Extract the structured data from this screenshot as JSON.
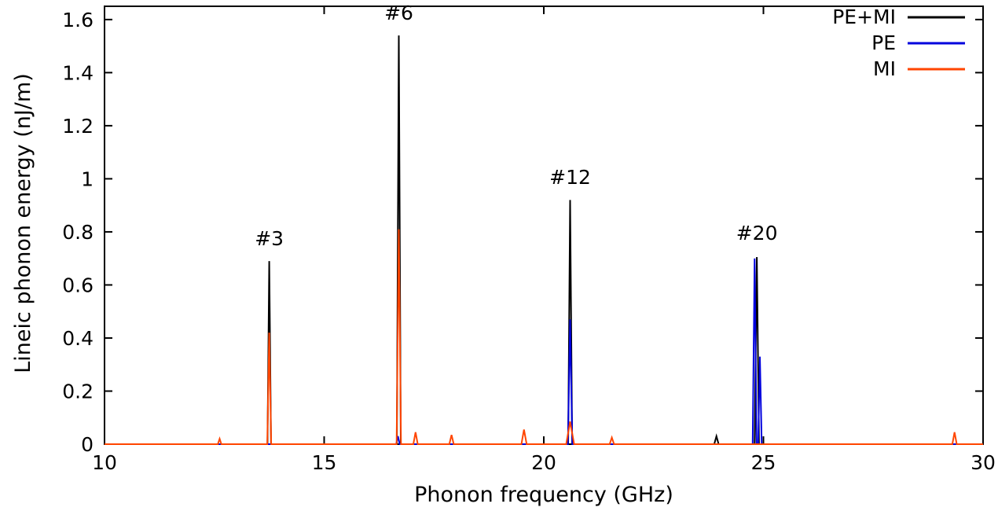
{
  "chart_data": {
    "type": "line",
    "title": "",
    "xlabel": "Phonon frequency (GHz)",
    "ylabel": "Lineic phonon energy (nJ/m)",
    "xlim": [
      10,
      30
    ],
    "ylim": [
      0,
      1.65
    ],
    "xticks": [
      "10",
      "15",
      "20",
      "25",
      "30"
    ],
    "yticks": [
      "0",
      "0.2",
      "0.4",
      "0.6",
      "0.8",
      "1",
      "1.2",
      "1.4",
      "1.6"
    ],
    "grid": false,
    "legend_position": "top-right",
    "series": [
      {
        "name": "PE+MI",
        "color": "#000000",
        "peaks": [
          {
            "x": 13.75,
            "h": 0.69,
            "w": 0.04
          },
          {
            "x": 16.7,
            "h": 1.54,
            "w": 0.045
          },
          {
            "x": 20.6,
            "h": 0.92,
            "w": 0.045
          },
          {
            "x": 23.93,
            "h": 0.03,
            "w": 0.05
          },
          {
            "x": 24.85,
            "h": 0.705,
            "w": 0.05
          }
        ]
      },
      {
        "name": "PE",
        "color": "#0000dd",
        "peaks": [
          {
            "x": 16.68,
            "h": 0.03,
            "w": 0.04
          },
          {
            "x": 20.6,
            "h": 0.47,
            "w": 0.05
          },
          {
            "x": 24.8,
            "h": 0.7,
            "w": 0.045
          },
          {
            "x": 24.92,
            "h": 0.33,
            "w": 0.04
          }
        ]
      },
      {
        "name": "MI",
        "color": "#ff4500",
        "peaks": [
          {
            "x": 12.62,
            "h": 0.02,
            "w": 0.04
          },
          {
            "x": 13.75,
            "h": 0.42,
            "w": 0.045
          },
          {
            "x": 16.7,
            "h": 0.81,
            "w": 0.05
          },
          {
            "x": 17.08,
            "h": 0.045,
            "w": 0.05
          },
          {
            "x": 17.9,
            "h": 0.035,
            "w": 0.05
          },
          {
            "x": 19.55,
            "h": 0.055,
            "w": 0.06
          },
          {
            "x": 20.6,
            "h": 0.085,
            "w": 0.09
          },
          {
            "x": 21.55,
            "h": 0.025,
            "w": 0.05
          },
          {
            "x": 29.35,
            "h": 0.045,
            "w": 0.05
          }
        ]
      }
    ],
    "annotations": [
      {
        "text": "#3",
        "x": 13.75,
        "y": 0.75
      },
      {
        "text": "#6",
        "x": 16.7,
        "y": 1.6
      },
      {
        "text": "#12",
        "x": 20.6,
        "y": 0.98
      },
      {
        "text": "#20",
        "x": 24.85,
        "y": 0.77
      }
    ]
  }
}
